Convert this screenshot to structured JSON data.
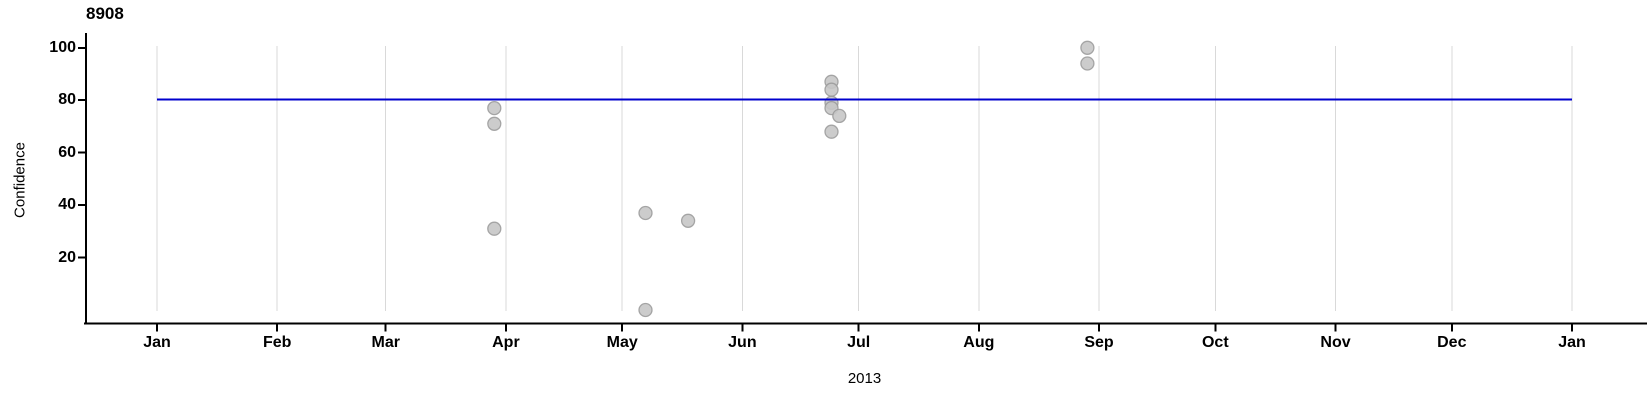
{
  "chart_data": {
    "type": "scatter",
    "title": "8908",
    "xlabel": "2013",
    "ylabel": "Confidence",
    "ylim": [
      0,
      100
    ],
    "x_range": [
      "2013-01-01",
      "2014-01-01"
    ],
    "grid": "vertical-monthly",
    "legend": "none",
    "y_ticks": [
      20,
      40,
      60,
      80,
      100
    ],
    "x_ticks": [
      {
        "label": "Jan",
        "date": "2013-01-01"
      },
      {
        "label": "Feb",
        "date": "2013-02-01"
      },
      {
        "label": "Mar",
        "date": "2013-03-01"
      },
      {
        "label": "Apr",
        "date": "2013-04-01"
      },
      {
        "label": "May",
        "date": "2013-05-01"
      },
      {
        "label": "Jun",
        "date": "2013-06-01"
      },
      {
        "label": "Jul",
        "date": "2013-07-01"
      },
      {
        "label": "Aug",
        "date": "2013-08-01"
      },
      {
        "label": "Sep",
        "date": "2013-09-01"
      },
      {
        "label": "Oct",
        "date": "2013-10-01"
      },
      {
        "label": "Nov",
        "date": "2013-11-01"
      },
      {
        "label": "Dec",
        "date": "2013-12-01"
      },
      {
        "label": "Jan",
        "date": "2014-01-01"
      }
    ],
    "points": [
      {
        "date": "2013-03-29",
        "value": 77
      },
      {
        "date": "2013-03-29",
        "value": 71
      },
      {
        "date": "2013-03-29",
        "value": 31
      },
      {
        "date": "2013-05-07",
        "value": 37
      },
      {
        "date": "2013-05-07",
        "value": 0
      },
      {
        "date": "2013-05-18",
        "value": 34
      },
      {
        "date": "2013-06-24",
        "value": 87
      },
      {
        "date": "2013-06-24",
        "value": 84
      },
      {
        "date": "2013-06-24",
        "value": 79
      },
      {
        "date": "2013-06-24",
        "value": 77
      },
      {
        "date": "2013-06-26",
        "value": 74
      },
      {
        "date": "2013-06-24",
        "value": 68
      },
      {
        "date": "2013-08-29",
        "value": 100
      },
      {
        "date": "2013-08-29",
        "value": 94
      }
    ],
    "reference_line": {
      "value": 80,
      "color": "#0000cd"
    },
    "colors": {
      "point_fill": "#c7c7c7",
      "point_stroke": "#999999",
      "grid_line": "#d9d9d9",
      "axis_line": "#000000",
      "text": "#000000"
    }
  }
}
